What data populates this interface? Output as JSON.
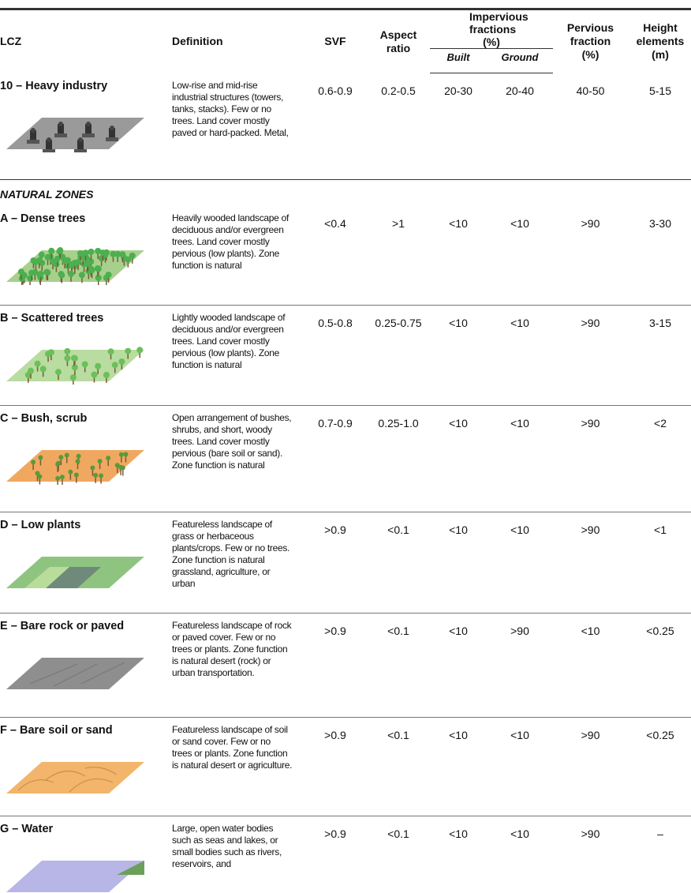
{
  "header": {
    "lcz": "LCZ",
    "definition": "Definition",
    "svf": "SVF",
    "aspect_ratio": "Aspect ratio",
    "impervious": "Impervious fractions (%)",
    "built": "Built",
    "ground": "Ground",
    "pervious": "Pervious fraction (%)",
    "height": "Height elements (m)"
  },
  "table": {
    "section_title": "NATURAL ZONES",
    "rows": [
      {
        "lcz": "10 – Heavy industry",
        "definition": "Low-rise and mid-rise industrial structures (towers, tanks, stacks). Few or no trees. Land cover mostly paved or hard-packed. Metal,",
        "svf": "0.6-0.9",
        "aspect_ratio": "0.2-0.5",
        "built": "20-30",
        "ground": "20-40",
        "pervious": "40-50",
        "height": "5-15"
      },
      {
        "lcz": "A – Dense trees",
        "definition": "Heavily wooded landscape of deciduous and/or evergreen trees. Land cover mostly pervious (low plants). Zone function is natural",
        "svf": "<0.4",
        "aspect_ratio": ">1",
        "built": "<10",
        "ground": "<10",
        "pervious": ">90",
        "height": "3-30"
      },
      {
        "lcz": "B – Scattered trees",
        "definition": "Lightly wooded landscape of deciduous and/or evergreen trees. Land cover mostly pervious (low plants). Zone function is natural",
        "svf": "0.5-0.8",
        "aspect_ratio": "0.25-0.75",
        "built": "<10",
        "ground": "<10",
        "pervious": ">90",
        "height": "3-15"
      },
      {
        "lcz": "C – Bush, scrub",
        "definition": "Open arrangement of bushes, shrubs, and short, woody trees. Land cover mostly pervious (bare soil or sand). Zone function is natural",
        "svf": "0.7-0.9",
        "aspect_ratio": "0.25-1.0",
        "built": "<10",
        "ground": "<10",
        "pervious": ">90",
        "height": "<2"
      },
      {
        "lcz": "D – Low plants",
        "definition": "Featureless landscape of grass or herbaceous plants/crops. Few or no trees. Zone function is natural grassland, agriculture, or urban",
        "svf": ">0.9",
        "aspect_ratio": "<0.1",
        "built": "<10",
        "ground": "<10",
        "pervious": ">90",
        "height": "<1"
      },
      {
        "lcz": "E – Bare rock or paved",
        "definition": "Featureless landscape of rock or paved cover. Few or no trees or plants. Zone function is natural desert (rock) or urban transportation.",
        "svf": ">0.9",
        "aspect_ratio": "<0.1",
        "built": "<10",
        "ground": ">90",
        "pervious": "<10",
        "height": "<0.25"
      },
      {
        "lcz": "F – Bare soil or sand",
        "definition": "Featureless landscape of soil or sand cover. Few or no trees or plants. Zone function is natural desert or agriculture.",
        "svf": ">0.9",
        "aspect_ratio": "<0.1",
        "built": "<10",
        "ground": "<10",
        "pervious": ">90",
        "height": "<0.25"
      },
      {
        "lcz": "G – Water",
        "definition": "Large, open water bodies such as seas and lakes, or small bodies such as rivers, reservoirs, and",
        "svf": ">0.9",
        "aspect_ratio": "<0.1",
        "built": "<10",
        "ground": "<10",
        "pervious": ">90",
        "height": "–"
      }
    ]
  }
}
